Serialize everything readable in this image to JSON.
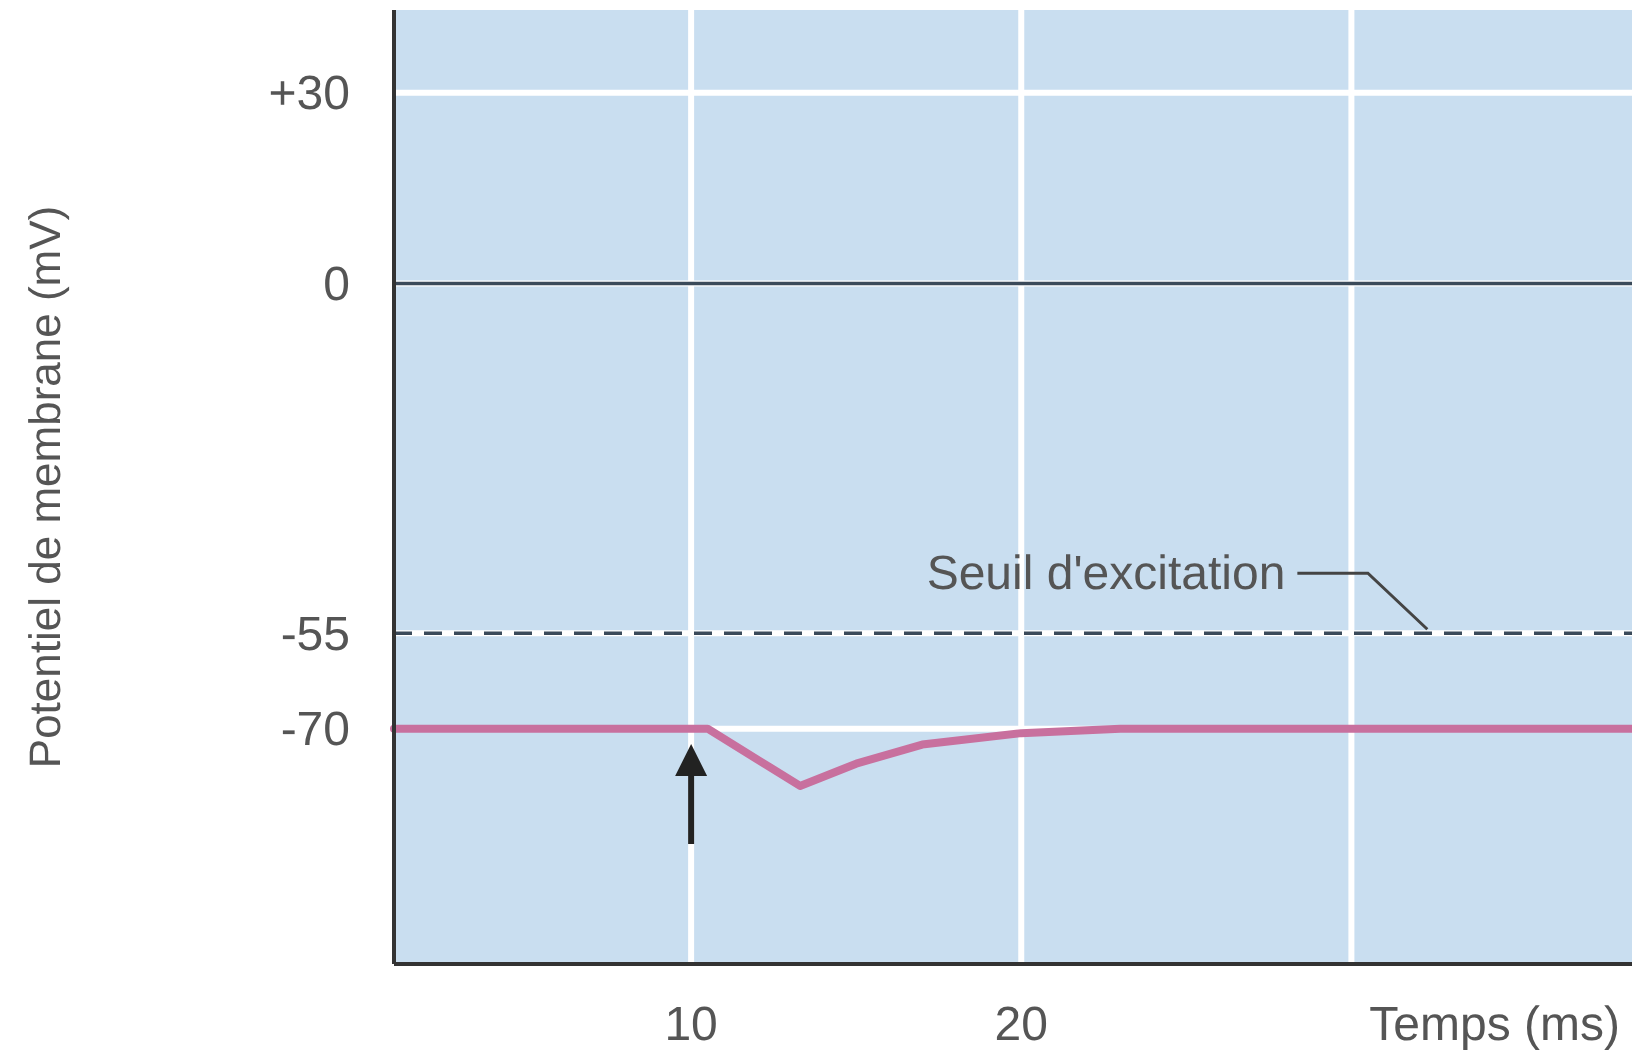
{
  "chart_data": {
    "type": "line",
    "xlabel": "Temps (ms)",
    "ylabel": "Potentiel de membrane (mV)",
    "x": [
      1,
      10.5,
      13.3,
      15,
      17,
      20,
      23,
      38.5
    ],
    "series": [
      {
        "color": "#c8709e",
        "values": [
          -70,
          -70,
          -79,
          -75.5,
          -72.5,
          -70.7,
          -70,
          -70
        ]
      }
    ],
    "xlim": [
      1,
      38.5
    ],
    "ylim": [
      -107,
      43
    ],
    "xticks": [
      10,
      20,
      {
        "value": 30,
        "label": null
      }
    ],
    "yticks": [
      {
        "value": 30,
        "label": "+30"
      },
      0,
      -55,
      -70
    ],
    "grid": true,
    "marker": "none",
    "line_style": "solid",
    "ref_lines": [
      {
        "axis": "y",
        "value": 0,
        "color": "#3a4a5a",
        "line_style": "solid"
      },
      {
        "axis": "y",
        "value": -55,
        "label": "Seuil d'excitation",
        "color": "#3a4a5a",
        "line_style": "dashed"
      }
    ]
  }
}
